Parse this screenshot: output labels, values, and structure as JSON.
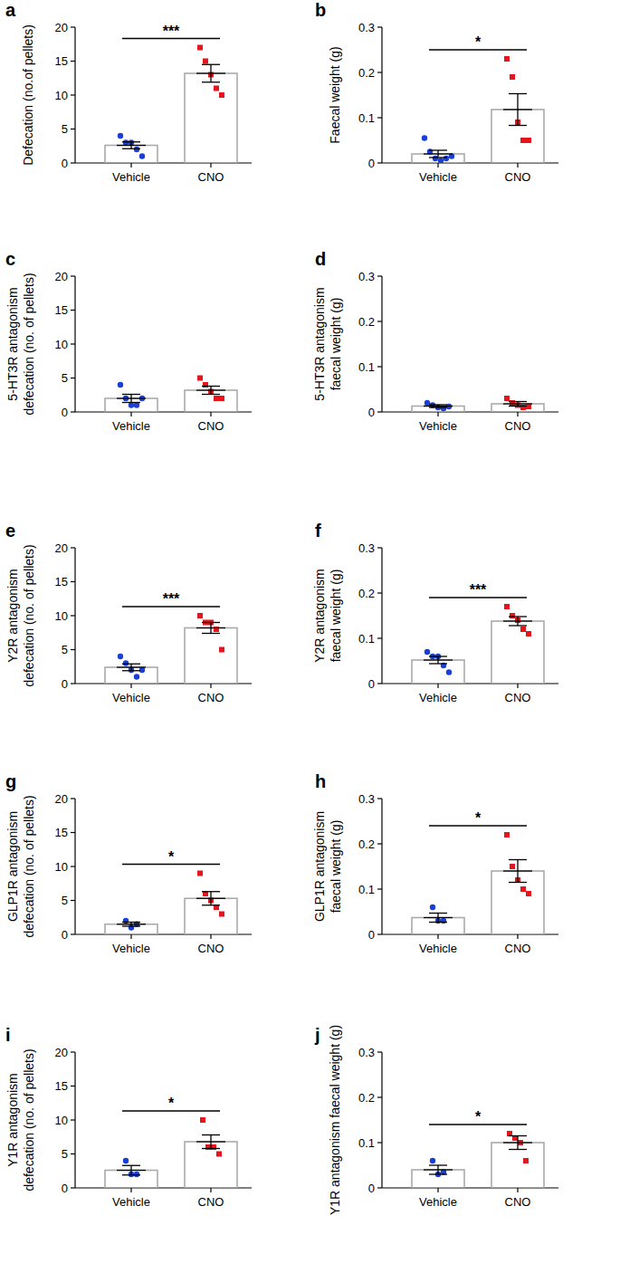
{
  "chart_data": [
    {
      "type": "bar",
      "title": "a",
      "y_label": [
        "Defecation (no.of pellets)"
      ],
      "categories": [
        "Vehicle",
        "CNO"
      ],
      "values": [
        2.6,
        13.2
      ],
      "errors": [
        0.5,
        1.3
      ],
      "points": [
        [
          4,
          3,
          3,
          2,
          1
        ],
        [
          17,
          15,
          13,
          11,
          10
        ]
      ],
      "colors": [
        "#1a3fd6",
        "#e8141c"
      ],
      "ylim": [
        0,
        20
      ],
      "yticks": [
        0,
        5,
        10,
        15,
        20
      ],
      "significance": "***"
    },
    {
      "type": "bar",
      "title": "b",
      "y_label": [
        "Faecal weight (g)"
      ],
      "categories": [
        "Vehicle",
        "CNO"
      ],
      "values": [
        0.02,
        0.118
      ],
      "errors": [
        0.008,
        0.035
      ],
      "points": [
        [
          0.055,
          0.025,
          0.01,
          0.005,
          0.01,
          0.015
        ],
        [
          0.23,
          0.19,
          0.09,
          0.05,
          0.05
        ]
      ],
      "colors": [
        "#1a3fd6",
        "#e8141c"
      ],
      "ylim": [
        0,
        0.3
      ],
      "yticks": [
        0,
        0.1,
        0.2,
        0.3
      ],
      "significance": "*"
    },
    {
      "type": "bar",
      "title": "c",
      "y_label": [
        "5-HT3R antagonism",
        "defecation (no. of pellets)"
      ],
      "categories": [
        "Vehicle",
        "CNO"
      ],
      "values": [
        2.0,
        3.2
      ],
      "errors": [
        0.6,
        0.6
      ],
      "points": [
        [
          4,
          2,
          1,
          1,
          2
        ],
        [
          5,
          4,
          3,
          2,
          2
        ]
      ],
      "colors": [
        "#1a3fd6",
        "#e8141c"
      ],
      "ylim": [
        0,
        20
      ],
      "yticks": [
        0,
        5,
        10,
        15,
        20
      ]
    },
    {
      "type": "bar",
      "title": "d",
      "y_label": [
        "5-HT3R antagonism",
        "faecal weight (g)"
      ],
      "categories": [
        "Vehicle",
        "CNO"
      ],
      "values": [
        0.013,
        0.018
      ],
      "errors": [
        0.003,
        0.005
      ],
      "points": [
        [
          0.02,
          0.015,
          0.01,
          0.008,
          0.012
        ],
        [
          0.03,
          0.02,
          0.015,
          0.01,
          0.012
        ]
      ],
      "colors": [
        "#1a3fd6",
        "#e8141c"
      ],
      "ylim": [
        0,
        0.3
      ],
      "yticks": [
        0,
        0.1,
        0.2,
        0.3
      ]
    },
    {
      "type": "bar",
      "title": "e",
      "y_label": [
        "Y2R antagonism",
        "defecation (no. of pellets)"
      ],
      "categories": [
        "Vehicle",
        "CNO"
      ],
      "values": [
        2.4,
        8.2
      ],
      "errors": [
        0.5,
        0.8
      ],
      "points": [
        [
          4,
          3,
          2,
          1,
          2
        ],
        [
          10,
          9,
          9,
          8,
          5
        ]
      ],
      "colors": [
        "#1a3fd6",
        "#e8141c"
      ],
      "ylim": [
        0,
        20
      ],
      "yticks": [
        0,
        5,
        10,
        15,
        20
      ],
      "significance": "***"
    },
    {
      "type": "bar",
      "title": "f",
      "y_label": [
        "Y2R antagonism",
        "faecal weight (g)"
      ],
      "categories": [
        "Vehicle",
        "CNO"
      ],
      "values": [
        0.052,
        0.138
      ],
      "errors": [
        0.008,
        0.01
      ],
      "points": [
        [
          0.07,
          0.06,
          0.06,
          0.04,
          0.025
        ],
        [
          0.17,
          0.15,
          0.14,
          0.12,
          0.11
        ]
      ],
      "colors": [
        "#1a3fd6",
        "#e8141c"
      ],
      "ylim": [
        0,
        0.3
      ],
      "yticks": [
        0,
        0.1,
        0.2,
        0.3
      ],
      "significance": "***"
    },
    {
      "type": "bar",
      "title": "g",
      "y_label": [
        "GLP1R antagonism",
        "defecation (no. of pellets)"
      ],
      "categories": [
        "Vehicle",
        "CNO"
      ],
      "values": [
        1.5,
        5.3
      ],
      "errors": [
        0.3,
        1.0
      ],
      "points": [
        [
          2,
          1,
          1.5
        ],
        [
          9,
          6,
          5,
          4,
          3
        ]
      ],
      "colors": [
        "#1a3fd6",
        "#e8141c"
      ],
      "ylim": [
        0,
        20
      ],
      "yticks": [
        0,
        5,
        10,
        15,
        20
      ],
      "significance": "*"
    },
    {
      "type": "bar",
      "title": "h",
      "y_label": [
        "GLP1R antagonism",
        "faecal weight (g)"
      ],
      "categories": [
        "Vehicle",
        "CNO"
      ],
      "values": [
        0.037,
        0.14
      ],
      "errors": [
        0.01,
        0.025
      ],
      "points": [
        [
          0.06,
          0.03,
          0.03
        ],
        [
          0.22,
          0.15,
          0.12,
          0.1,
          0.09
        ]
      ],
      "colors": [
        "#1a3fd6",
        "#e8141c"
      ],
      "ylim": [
        0,
        0.3
      ],
      "yticks": [
        0,
        0.1,
        0.2,
        0.3
      ],
      "significance": "*"
    },
    {
      "type": "bar",
      "title": "i",
      "y_label": [
        "Y1R antagonism",
        "defecation (no. of pellets)"
      ],
      "categories": [
        "Vehicle",
        "CNO"
      ],
      "values": [
        2.6,
        6.8
      ],
      "errors": [
        0.7,
        1.0
      ],
      "points": [
        [
          4,
          2,
          2
        ],
        [
          10,
          6,
          6,
          5
        ]
      ],
      "colors": [
        "#1a3fd6",
        "#e8141c"
      ],
      "ylim": [
        0,
        20
      ],
      "yticks": [
        0,
        5,
        10,
        15,
        20
      ],
      "significance": "*"
    },
    {
      "type": "bar",
      "title": "j",
      "y_label": [
        "Y1R antagonism faecal weight (g)"
      ],
      "categories": [
        "Vehicle",
        "CNO"
      ],
      "values": [
        0.04,
        0.1
      ],
      "errors": [
        0.01,
        0.015
      ],
      "points": [
        [
          0.06,
          0.03,
          0.035
        ],
        [
          0.12,
          0.11,
          0.1,
          0.06
        ]
      ],
      "colors": [
        "#1a3fd6",
        "#e8141c"
      ],
      "ylim": [
        0,
        0.3
      ],
      "yticks": [
        0,
        0.1,
        0.2,
        0.3
      ],
      "significance": "*"
    }
  ]
}
